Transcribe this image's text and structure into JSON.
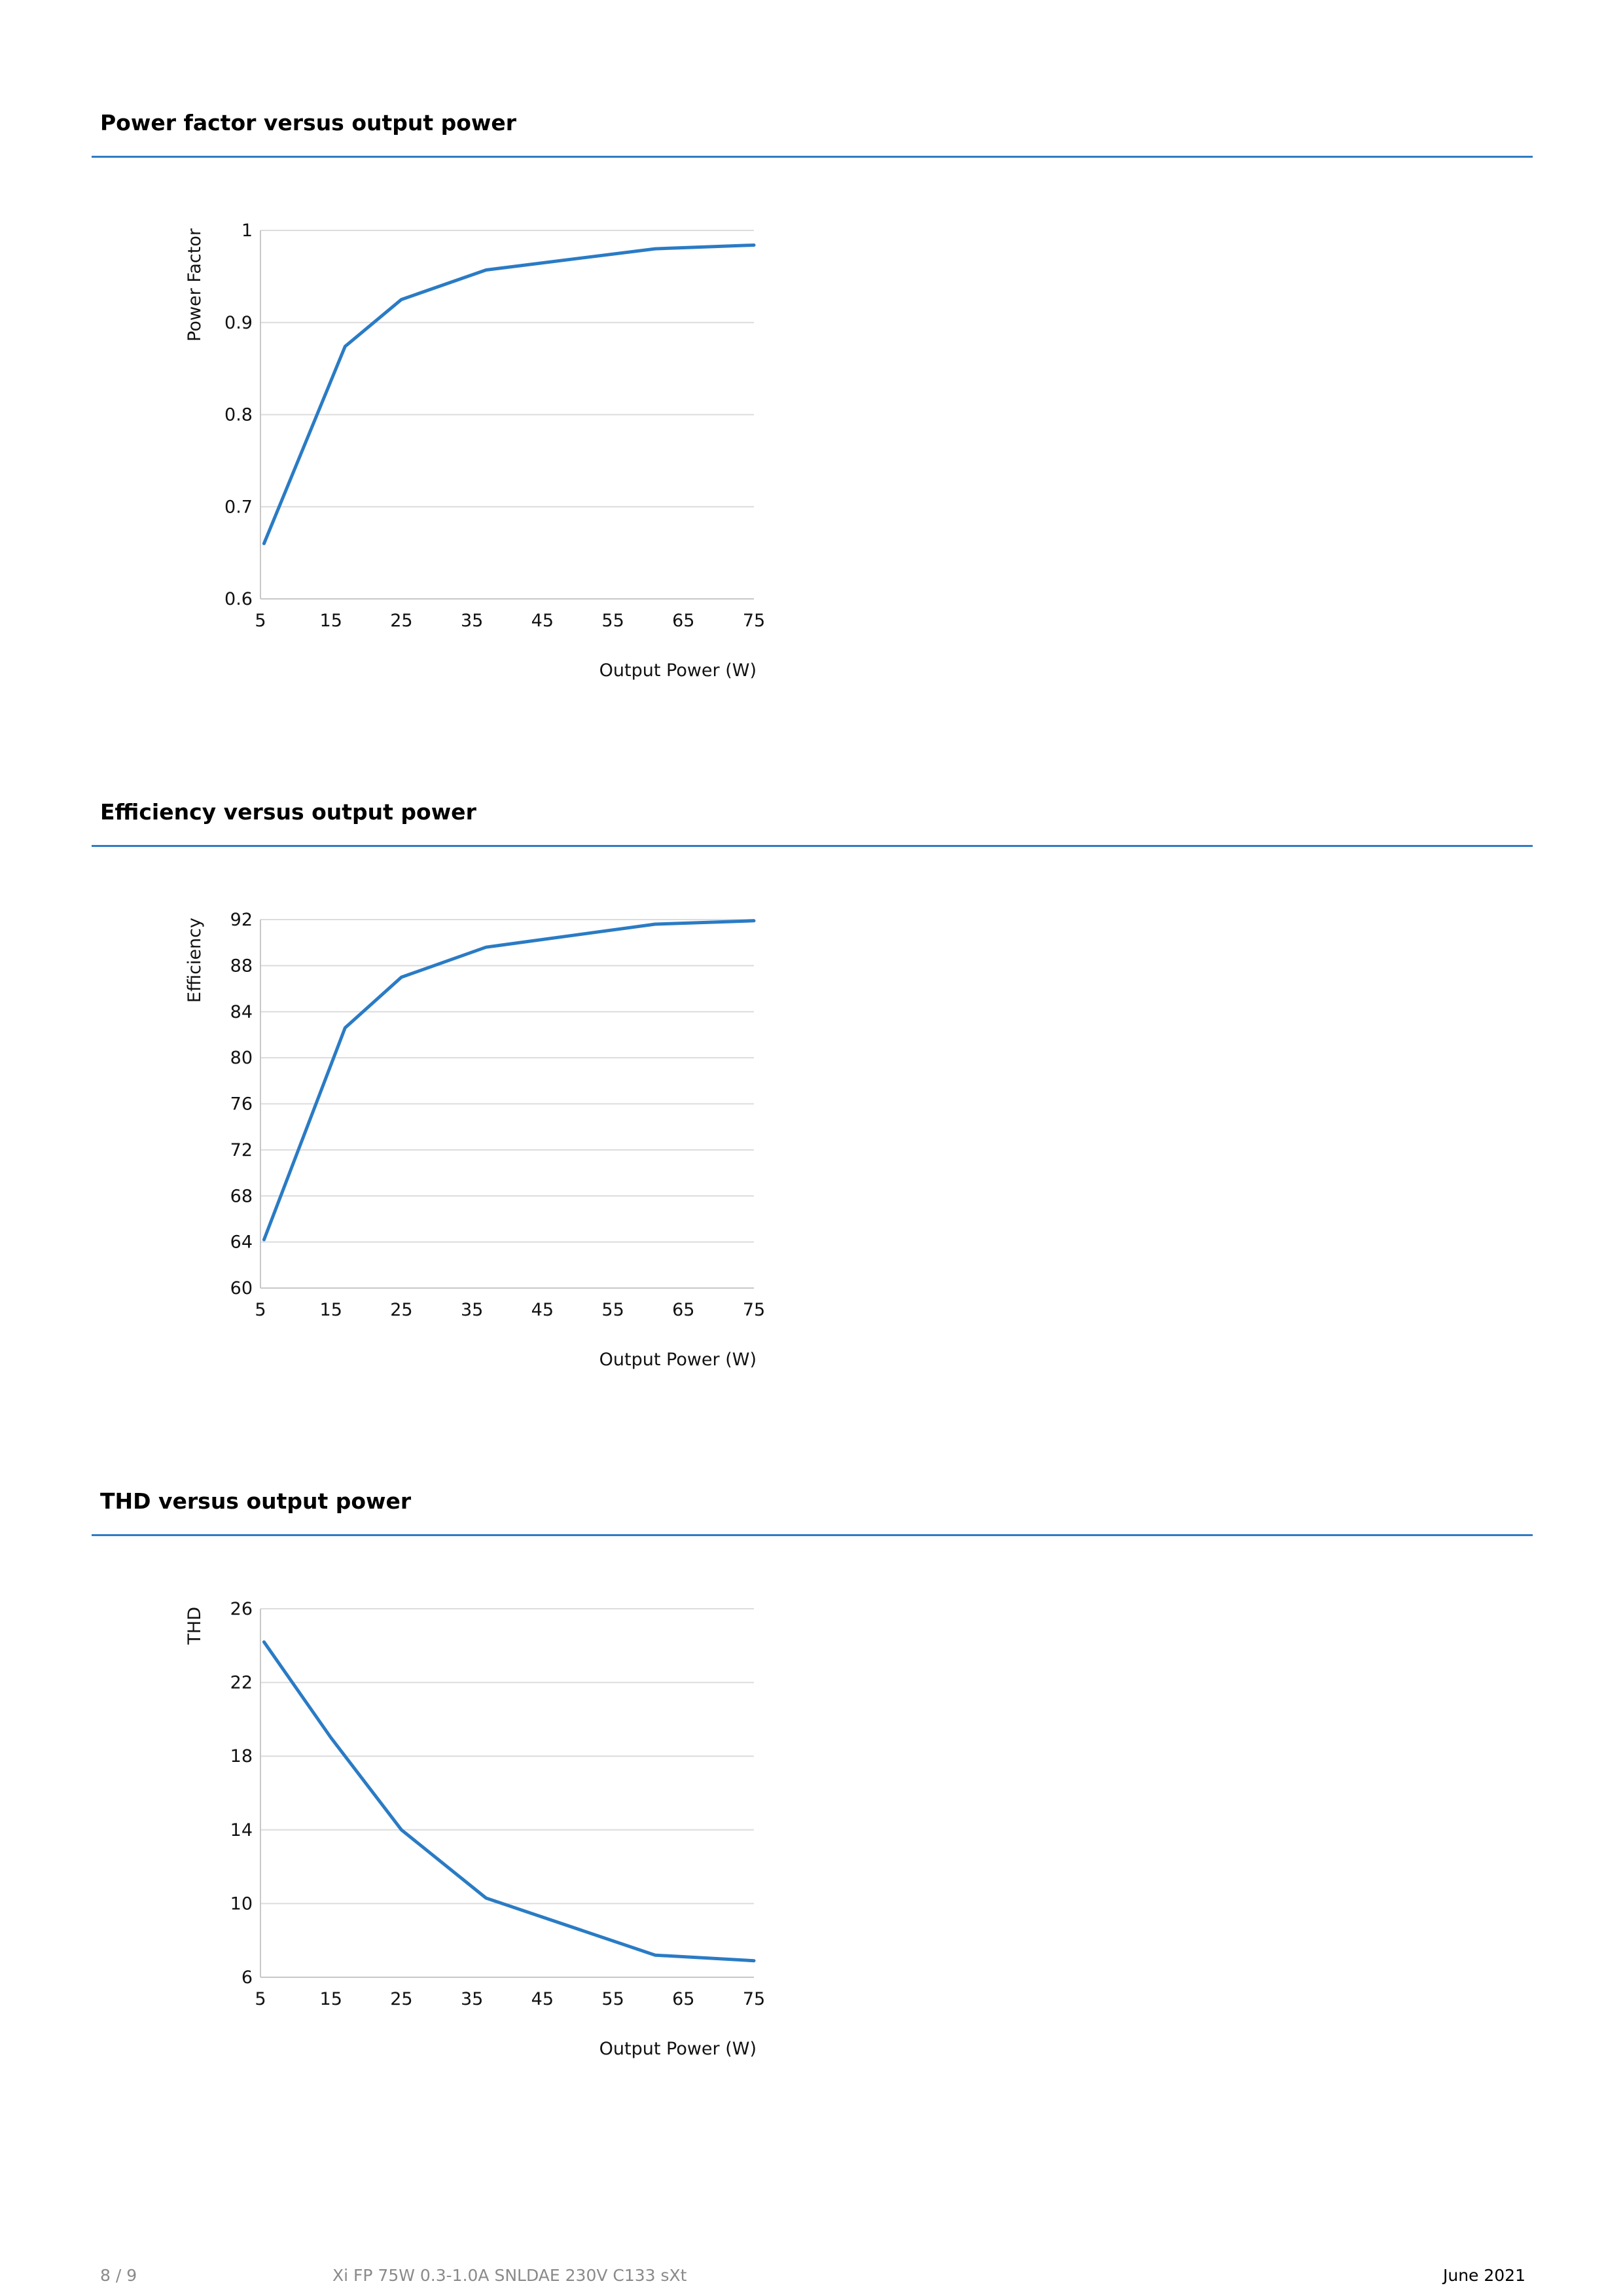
{
  "sections": [
    {
      "title": "Power factor versus output power"
    },
    {
      "title": "Efficiency versus output power"
    },
    {
      "title": "THD versus output power"
    }
  ],
  "chart_data": [
    {
      "type": "line",
      "title": "",
      "xlabel": "Output Power (W)",
      "ylabel": "Power Factor",
      "x_ticks": [
        "5",
        "15",
        "25",
        "35",
        "45",
        "55",
        "65",
        "75"
      ],
      "y_ticks": [
        "0.6",
        "0.7",
        "0.8",
        "0.9",
        "1"
      ],
      "xlim": [
        5,
        75
      ],
      "ylim": [
        0.6,
        1
      ],
      "grid": true,
      "series": [
        {
          "x": [
            5.5,
            17,
            25,
            37,
            61,
            75
          ],
          "values": [
            0.66,
            0.874,
            0.925,
            0.957,
            0.98,
            0.984
          ]
        }
      ]
    },
    {
      "type": "line",
      "title": "",
      "xlabel": "Output Power (W)",
      "ylabel": "Efficiency",
      "x_ticks": [
        "5",
        "15",
        "25",
        "35",
        "45",
        "55",
        "65",
        "75"
      ],
      "y_ticks": [
        "60",
        "64",
        "68",
        "72",
        "76",
        "80",
        "84",
        "88",
        "92"
      ],
      "xlim": [
        5,
        75
      ],
      "ylim": [
        60,
        92
      ],
      "grid": true,
      "series": [
        {
          "x": [
            5.5,
            17,
            25,
            37,
            61,
            75
          ],
          "values": [
            64.2,
            82.6,
            87.0,
            89.6,
            91.6,
            91.9
          ]
        }
      ]
    },
    {
      "type": "line",
      "title": "",
      "xlabel": "Output Power (W)",
      "ylabel": "THD",
      "x_ticks": [
        "5",
        "15",
        "25",
        "35",
        "45",
        "55",
        "65",
        "75"
      ],
      "y_ticks": [
        "6",
        "10",
        "14",
        "18",
        "22",
        "26"
      ],
      "xlim": [
        5,
        75
      ],
      "ylim": [
        6,
        26
      ],
      "grid": true,
      "series": [
        {
          "x": [
            5.5,
            15,
            25,
            37,
            61,
            75
          ],
          "values": [
            24.2,
            19.0,
            14.0,
            10.3,
            7.2,
            6.9
          ]
        }
      ]
    }
  ],
  "footer": {
    "page": "8 / 9",
    "product": "Xi FP 75W 0.3-1.0A SNLDAE 230V C133 sXt",
    "date": "June 2021"
  }
}
